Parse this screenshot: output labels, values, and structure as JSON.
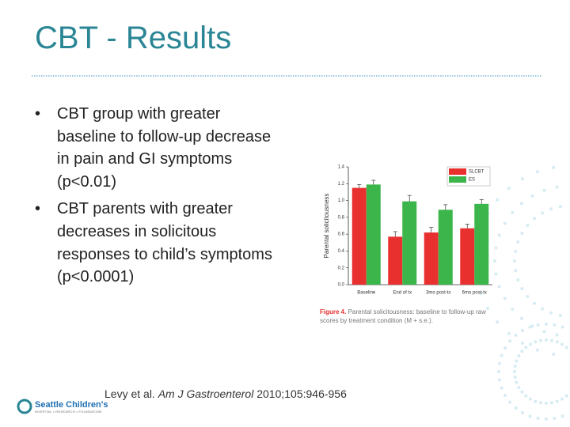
{
  "title": "CBT - Results",
  "bullets": [
    "CBT group with greater baseline to follow-up decrease in pain and GI symptoms (p<0.01)",
    "CBT parents with greater decreases in solicitous responses to child’s symptoms (p<0.0001)"
  ],
  "figure": {
    "label": "Figure 4.",
    "caption": "Parental solicitousness: baseline to follow-up raw scores by treatment condition (M + s.e.)."
  },
  "citation": {
    "authors": "Levy et al.",
    "journal": "Am J Gastroenterol",
    "details": "2010;105:946-956"
  },
  "logo": {
    "name": "Seattle Children's",
    "tagline": "HOSPITAL • RESEARCH • FOUNDATION"
  },
  "chart_data": {
    "type": "bar",
    "y_label": "Parental solicitousness",
    "categories": [
      "Baseline",
      "End of tx",
      "3mo post-tx",
      "6mo post-tx"
    ],
    "series": [
      {
        "name": "SLCBT",
        "color": "#e8302f",
        "values": [
          1.15,
          0.57,
          0.62,
          0.67
        ],
        "errors": [
          0.04,
          0.06,
          0.06,
          0.05
        ]
      },
      {
        "name": "ES",
        "color": "#3cb54a",
        "values": [
          1.19,
          0.99,
          0.89,
          0.96
        ],
        "errors": [
          0.05,
          0.07,
          0.06,
          0.05
        ]
      }
    ],
    "ylim": [
      0,
      1.4
    ],
    "yticks": [
      {
        "value": 0,
        "label": "0.0"
      },
      {
        "value": 0.2,
        "label": "0.2"
      },
      {
        "value": 0.4,
        "label": "0.4"
      },
      {
        "value": 0.6,
        "label": "0.6"
      },
      {
        "value": 0.8,
        "label": "0.8"
      },
      {
        "value": 1,
        "label": "1.0"
      },
      {
        "value": 1.2,
        "label": "1.2"
      },
      {
        "value": 1.4,
        "label": "1.4"
      }
    ],
    "legend": "upper right"
  }
}
